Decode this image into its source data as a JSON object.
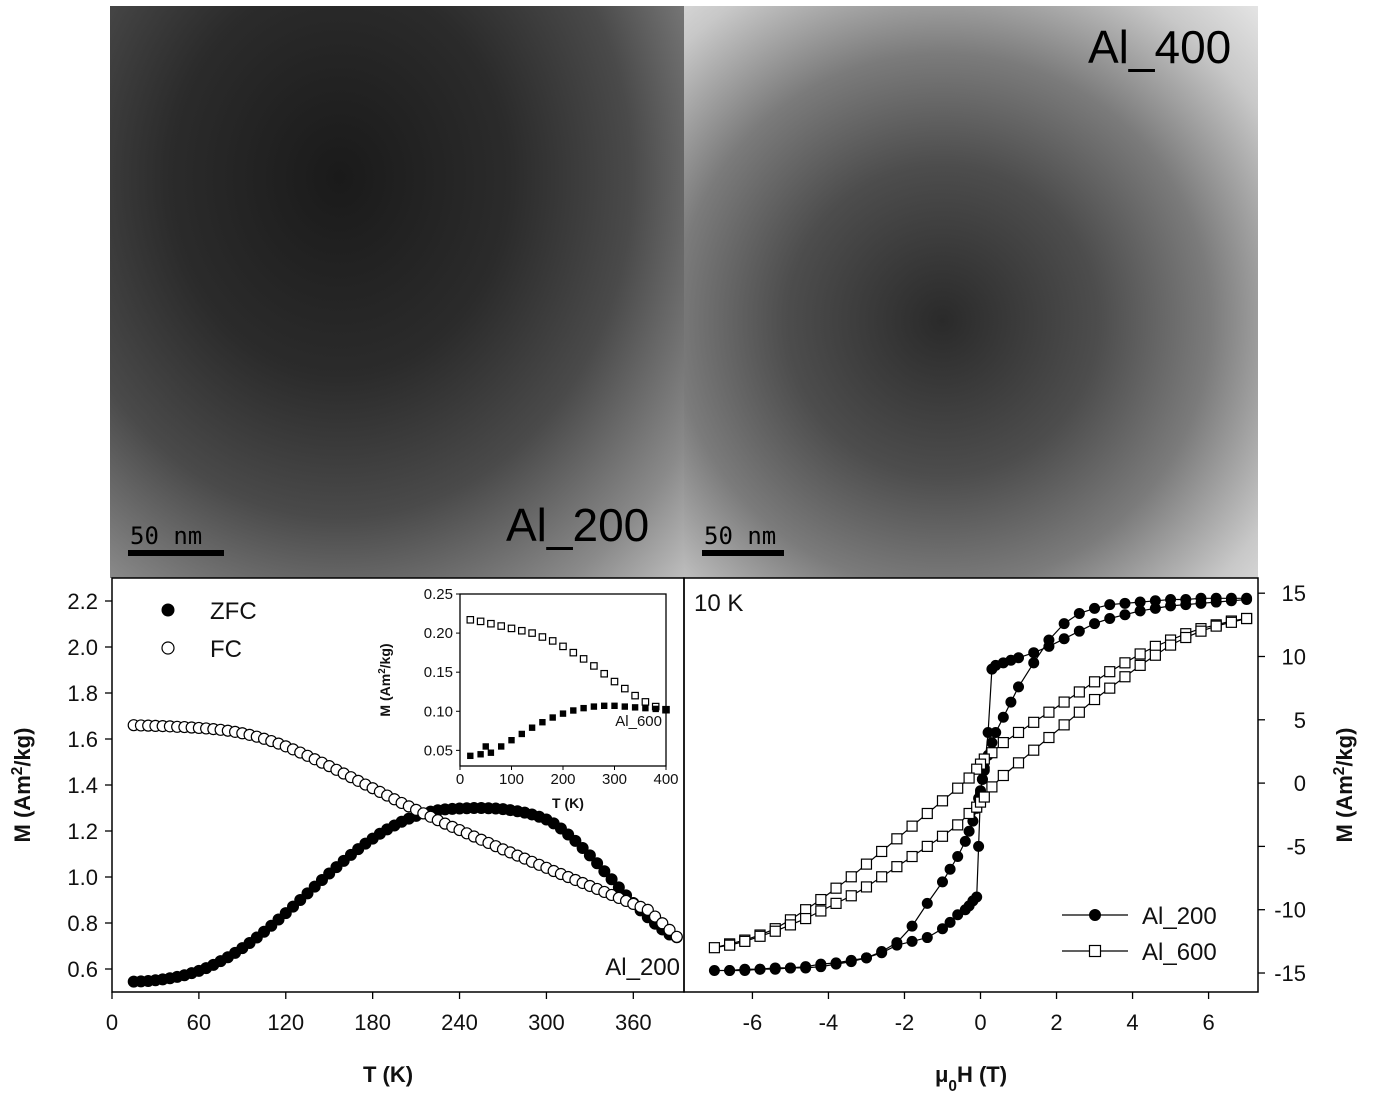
{
  "micrographs": [
    {
      "label": "Al_200",
      "scale": "50 nm"
    },
    {
      "label": "Al_400",
      "scale": "50 nm"
    }
  ],
  "chart_data": [
    {
      "type": "scatter",
      "xlabel": "T (K)",
      "ylabel": "M (Am²/kg)",
      "xlim": [
        0,
        395
      ],
      "ylim": [
        0.5,
        2.3
      ],
      "xticks": [
        0,
        60,
        120,
        180,
        240,
        300,
        360
      ],
      "yticks": [
        0.6,
        0.8,
        1.0,
        1.2,
        1.4,
        1.6,
        1.8,
        2.0,
        2.2
      ],
      "annotation": "Al_200",
      "legend_position": "top-left",
      "series": [
        {
          "name": "ZFC",
          "marker": "filled-circle",
          "x": [
            15,
            20,
            25,
            30,
            35,
            40,
            45,
            50,
            55,
            60,
            65,
            70,
            75,
            80,
            85,
            90,
            95,
            100,
            105,
            110,
            115,
            120,
            125,
            130,
            135,
            140,
            145,
            150,
            155,
            160,
            165,
            170,
            175,
            180,
            185,
            190,
            195,
            200,
            205,
            210,
            215,
            220,
            225,
            230,
            235,
            240,
            245,
            250,
            255,
            260,
            265,
            270,
            275,
            280,
            285,
            290,
            295,
            300,
            305,
            310,
            315,
            320,
            325,
            330,
            335,
            340,
            345,
            350,
            355,
            360,
            365,
            370,
            375,
            380,
            385,
            390
          ],
          "y": [
            0.545,
            0.546,
            0.548,
            0.551,
            0.555,
            0.56,
            0.566,
            0.573,
            0.582,
            0.592,
            0.604,
            0.618,
            0.634,
            0.651,
            0.67,
            0.691,
            0.713,
            0.737,
            0.762,
            0.788,
            0.815,
            0.843,
            0.871,
            0.9,
            0.929,
            0.958,
            0.987,
            1.015,
            1.043,
            1.07,
            1.096,
            1.121,
            1.145,
            1.167,
            1.188,
            1.207,
            1.224,
            1.24,
            1.254,
            1.266,
            1.276,
            1.284,
            1.29,
            1.294,
            1.296,
            1.298,
            1.299,
            1.3,
            1.3,
            1.299,
            1.298,
            1.295,
            1.291,
            1.286,
            1.28,
            1.272,
            1.262,
            1.25,
            1.233,
            1.211,
            1.185,
            1.157,
            1.126,
            1.094,
            1.06,
            1.025,
            0.99,
            0.955,
            0.92,
            0.887,
            0.855,
            0.825,
            0.797,
            0.772,
            0.75,
            0.738
          ]
        },
        {
          "name": "FC",
          "marker": "open-circle",
          "x": [
            15,
            20,
            25,
            30,
            35,
            40,
            45,
            50,
            55,
            60,
            65,
            70,
            75,
            80,
            85,
            90,
            95,
            100,
            105,
            110,
            115,
            120,
            125,
            130,
            135,
            140,
            145,
            150,
            155,
            160,
            165,
            170,
            175,
            180,
            185,
            190,
            195,
            200,
            205,
            210,
            215,
            220,
            225,
            230,
            235,
            240,
            245,
            250,
            255,
            260,
            265,
            270,
            275,
            280,
            285,
            290,
            295,
            300,
            305,
            310,
            315,
            320,
            325,
            330,
            335,
            340,
            345,
            350,
            355,
            360,
            365,
            370,
            375,
            380,
            385,
            390
          ],
          "y": [
            1.66,
            1.659,
            1.658,
            1.657,
            1.656,
            1.655,
            1.653,
            1.652,
            1.65,
            1.648,
            1.646,
            1.643,
            1.64,
            1.636,
            1.631,
            1.625,
            1.618,
            1.61,
            1.601,
            1.591,
            1.58,
            1.568,
            1.555,
            1.541,
            1.527,
            1.512,
            1.497,
            1.482,
            1.466,
            1.45,
            1.434,
            1.418,
            1.402,
            1.386,
            1.37,
            1.354,
            1.338,
            1.322,
            1.307,
            1.292,
            1.277,
            1.262,
            1.247,
            1.232,
            1.218,
            1.204,
            1.19,
            1.176,
            1.162,
            1.148,
            1.134,
            1.12,
            1.107,
            1.093,
            1.08,
            1.066,
            1.053,
            1.04,
            1.026,
            1.013,
            1.0,
            0.987,
            0.974,
            0.961,
            0.948,
            0.935,
            0.922,
            0.909,
            0.896,
            0.883,
            0.87,
            0.857,
            0.828,
            0.799,
            0.77,
            0.74
          ]
        }
      ]
    },
    {
      "type": "scatter",
      "inset": true,
      "xlabel": "T (K)",
      "ylabel": "M (Am²/kg)",
      "xlim": [
        0,
        400
      ],
      "ylim": [
        0.03,
        0.25
      ],
      "xticks": [
        0,
        100,
        200,
        300,
        400
      ],
      "yticks": [
        0.05,
        0.1,
        0.15,
        0.2,
        0.25
      ],
      "annotation": "Al_600",
      "series": [
        {
          "marker": "open-square",
          "x": [
            20,
            40,
            60,
            80,
            100,
            120,
            140,
            160,
            180,
            200,
            220,
            240,
            260,
            280,
            300,
            320,
            340,
            360,
            380,
            400
          ],
          "y": [
            0.217,
            0.215,
            0.212,
            0.209,
            0.206,
            0.203,
            0.2,
            0.195,
            0.19,
            0.183,
            0.175,
            0.167,
            0.158,
            0.148,
            0.138,
            0.129,
            0.12,
            0.112,
            0.106,
            0.102
          ]
        },
        {
          "marker": "filled-square",
          "x": [
            20,
            40,
            50,
            60,
            80,
            100,
            120,
            140,
            160,
            180,
            200,
            220,
            240,
            260,
            280,
            300,
            320,
            340,
            360,
            380,
            400
          ],
          "y": [
            0.043,
            0.045,
            0.055,
            0.047,
            0.055,
            0.063,
            0.071,
            0.079,
            0.086,
            0.092,
            0.097,
            0.101,
            0.104,
            0.106,
            0.107,
            0.107,
            0.106,
            0.105,
            0.104,
            0.103,
            0.102
          ]
        }
      ]
    },
    {
      "type": "line",
      "xlabel": "μ0H (T)",
      "ylabel": "M (Am²/kg)",
      "xlim": [
        -7.8,
        7.3
      ],
      "ylim": [
        -16.5,
        16.2
      ],
      "xticks": [
        -6,
        -4,
        -2,
        0,
        2,
        4,
        6
      ],
      "yticks": [
        -15,
        -10,
        -5,
        0,
        5,
        10,
        15
      ],
      "annotation": "10 K",
      "legend_position": "bottom-right",
      "series": [
        {
          "name": "Al_200",
          "marker": "filled-circle",
          "x": [
            7.0,
            6.6,
            6.2,
            5.8,
            5.4,
            5.0,
            4.6,
            4.2,
            3.8,
            3.4,
            3.0,
            2.6,
            2.2,
            1.8,
            1.4,
            1.0,
            0.8,
            0.6,
            0.4,
            0.3,
            0.2,
            0.1,
            0.05,
            0.0,
            -0.05,
            -0.1,
            -0.2,
            -0.3,
            -0.4,
            -0.6,
            -0.8,
            -1.0,
            -1.4,
            -1.8,
            -2.2,
            -2.6,
            -3.0,
            -3.4,
            -3.8,
            -4.2,
            -4.6,
            -5.0,
            -5.4,
            -5.8,
            -6.2,
            -6.6,
            -7.0,
            -6.6,
            -6.2,
            -5.8,
            -5.4,
            -5.0,
            -4.6,
            -4.2,
            -3.8,
            -3.4,
            -3.0,
            -2.6,
            -2.2,
            -1.8,
            -1.4,
            -1.0,
            -0.8,
            -0.6,
            -0.4,
            -0.3,
            -0.2,
            -0.1,
            -0.05,
            0.0,
            0.05,
            0.1,
            0.2,
            0.3,
            0.4,
            0.6,
            0.8,
            1.0,
            1.4,
            1.8,
            2.2,
            2.6,
            3.0,
            3.4,
            3.8,
            4.2,
            4.6,
            5.0,
            5.4,
            5.8,
            6.2,
            6.6,
            7.0
          ],
          "y": [
            14.5,
            14.4,
            14.3,
            14.2,
            14.1,
            14.0,
            13.8,
            13.6,
            13.3,
            13.0,
            12.6,
            12.0,
            11.4,
            10.8,
            10.3,
            9.9,
            9.7,
            9.5,
            9.3,
            9.0,
            4.0,
            1.0,
            0.3,
            -0.6,
            -1.2,
            -2.0,
            -3.0,
            -3.8,
            -4.6,
            -5.8,
            -6.8,
            -7.8,
            -9.5,
            -11.3,
            -12.6,
            -13.3,
            -13.8,
            -14.1,
            -14.3,
            -14.5,
            -14.6,
            -14.6,
            -14.7,
            -14.7,
            -14.8,
            -14.8,
            -14.8,
            -14.8,
            -14.7,
            -14.7,
            -14.6,
            -14.6,
            -14.5,
            -14.3,
            -14.2,
            -14.0,
            -13.8,
            -13.4,
            -12.8,
            -12.5,
            -12.2,
            -11.5,
            -11.0,
            -10.4,
            -10.0,
            -9.7,
            -9.3,
            -9.0,
            -5.0,
            -0.8,
            0.3,
            1.2,
            2.2,
            3.2,
            4.0,
            5.2,
            6.4,
            7.6,
            9.5,
            11.3,
            12.6,
            13.4,
            13.8,
            14.1,
            14.2,
            14.3,
            14.4,
            14.5,
            14.5,
            14.6,
            14.6,
            14.6,
            14.6
          ]
        },
        {
          "name": "Al_600",
          "marker": "open-square",
          "x": [
            7.0,
            6.6,
            6.2,
            5.8,
            5.4,
            5.0,
            4.6,
            4.2,
            3.8,
            3.4,
            3.0,
            2.6,
            2.2,
            1.8,
            1.4,
            1.0,
            0.6,
            0.3,
            0.1,
            0.0,
            -0.1,
            -0.3,
            -0.6,
            -1.0,
            -1.4,
            -1.8,
            -2.2,
            -2.6,
            -3.0,
            -3.4,
            -3.8,
            -4.2,
            -4.6,
            -5.0,
            -5.4,
            -5.8,
            -6.2,
            -6.6,
            -7.0,
            -6.6,
            -6.2,
            -5.8,
            -5.4,
            -5.0,
            -4.6,
            -4.2,
            -3.8,
            -3.4,
            -3.0,
            -2.6,
            -2.2,
            -1.8,
            -1.4,
            -1.0,
            -0.6,
            -0.3,
            -0.1,
            0.0,
            0.1,
            0.3,
            0.6,
            1.0,
            1.4,
            1.8,
            2.2,
            2.6,
            3.0,
            3.4,
            3.8,
            4.2,
            4.6,
            5.0,
            5.4,
            5.8,
            6.2,
            6.6,
            7.0
          ],
          "y": [
            13.0,
            12.8,
            12.5,
            12.2,
            11.8,
            11.3,
            10.8,
            10.2,
            9.5,
            8.8,
            8.0,
            7.2,
            6.4,
            5.6,
            4.8,
            4.0,
            3.2,
            2.4,
            1.9,
            1.5,
            1.1,
            0.4,
            -0.4,
            -1.4,
            -2.4,
            -3.4,
            -4.4,
            -5.4,
            -6.4,
            -7.4,
            -8.3,
            -9.2,
            -10.0,
            -10.8,
            -11.5,
            -12.0,
            -12.4,
            -12.7,
            -13.0,
            -12.8,
            -12.5,
            -12.1,
            -11.7,
            -11.2,
            -10.7,
            -10.1,
            -9.5,
            -8.9,
            -8.2,
            -7.4,
            -6.6,
            -5.8,
            -5.0,
            -4.2,
            -3.3,
            -2.4,
            -1.9,
            -1.5,
            -1.1,
            -0.3,
            0.6,
            1.6,
            2.6,
            3.6,
            4.6,
            5.6,
            6.6,
            7.5,
            8.4,
            9.3,
            10.1,
            10.9,
            11.5,
            12.0,
            12.4,
            12.7,
            13.0
          ]
        }
      ]
    }
  ]
}
